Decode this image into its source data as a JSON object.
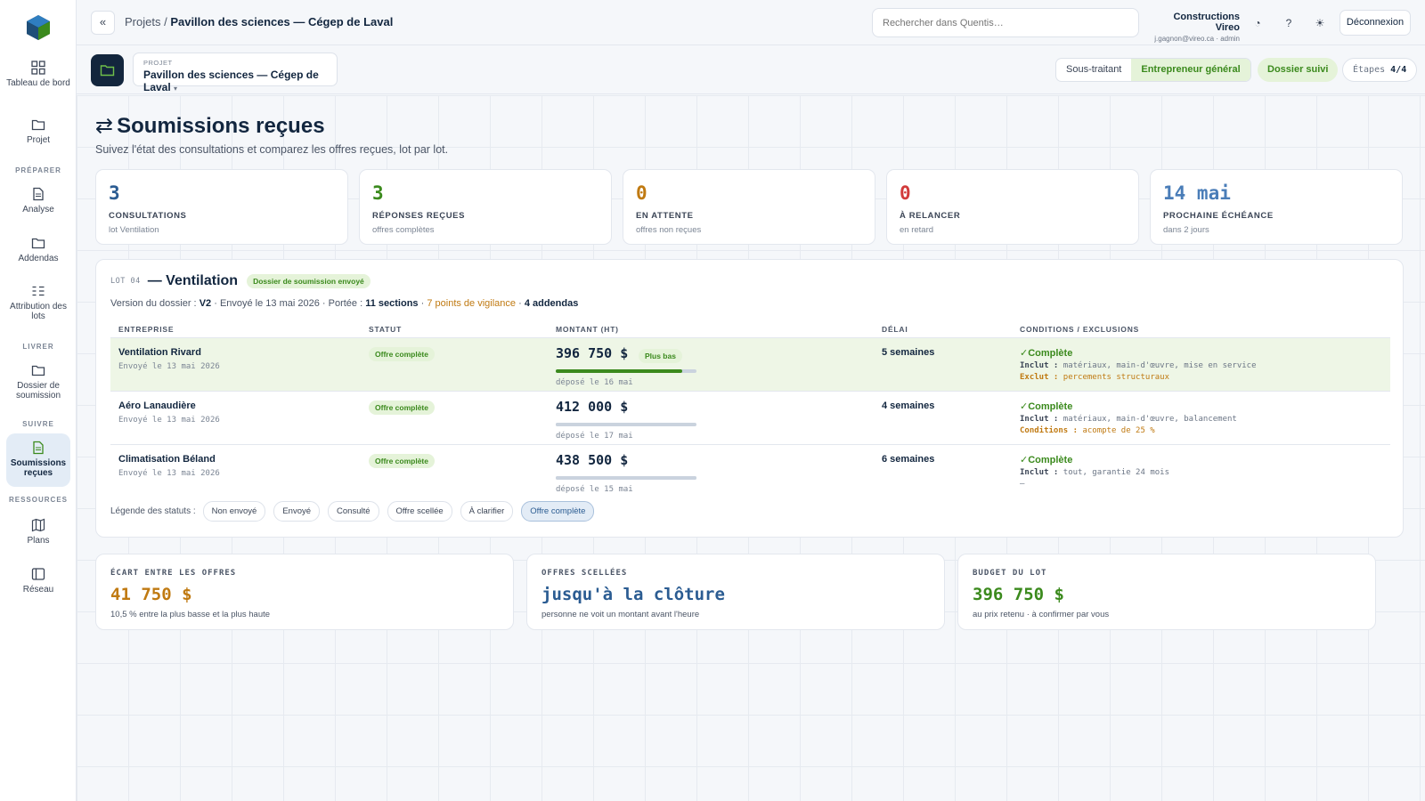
{
  "sidebar": {
    "items": [
      {
        "label": "Tableau de bord"
      },
      {
        "label": "Projet"
      },
      {
        "label": "Analyse"
      },
      {
        "label": "Addendas"
      },
      {
        "label": "Attribution des lots"
      },
      {
        "label": "Dossier de soumission"
      },
      {
        "label": "Soumissions reçues"
      },
      {
        "label": "Plans"
      },
      {
        "label": "Réseau"
      }
    ],
    "sections": {
      "preparer": "PRÉPARER",
      "livrer": "LIVRER",
      "suivre": "SUIVRE",
      "ressources": "RESSOURCES"
    }
  },
  "topbar": {
    "back_label": "«",
    "breadcrumb_root": "Projets /",
    "breadcrumb_current": "Pavillon des sciences — Cégep de Laval",
    "search_placeholder": "Rechercher dans Quentis…",
    "org_name": "Constructions Vireo",
    "org_user": "j.gagnon@vireo.ca · admin",
    "logout_label": "Déconnexion"
  },
  "project_bar": {
    "label": "PROJET",
    "value": "Pavillon des sciences — Cégep de Laval",
    "roles": [
      "Sous-traitant",
      "Entrepreneur général"
    ],
    "status_pill": "Dossier suivi",
    "steps_label": "Étapes",
    "steps_value": "4/4"
  },
  "page": {
    "title": "Soumissions reçues",
    "subtitle": "Suivez l'état des consultations et comparez les offres reçues, lot par lot."
  },
  "stats": [
    {
      "value": "3",
      "label": "CONSULTATIONS",
      "sub": "lot Ventilation",
      "color": "#2b5c92"
    },
    {
      "value": "3",
      "label": "RÉPONSES REÇUES",
      "sub": "offres complètes",
      "color": "#3b8a1d"
    },
    {
      "value": "0",
      "label": "EN ATTENTE",
      "sub": "offres non reçues",
      "color": "#c07a12"
    },
    {
      "value": "0",
      "label": "À RELANCER",
      "sub": "en retard",
      "color": "#d23b3b"
    },
    {
      "value": "14 mai",
      "label": "PROCHAINE ÉCHÉANCE",
      "sub": "dans 2 jours",
      "color": "#4a7db8"
    }
  ],
  "lot": {
    "tag": "LOT 04",
    "name": "— Ventilation",
    "badge": "Dossier de soumission envoyé",
    "meta_prefix": "Version du dossier :",
    "meta_version": "V2",
    "meta_sent": "· Envoyé le 13 mai 2026 · Portée :",
    "meta_sections": "11 sections",
    "meta_sep": "·",
    "meta_vigilance": "7 points de vigilance",
    "meta_sep2": "·",
    "meta_addendas": "4 addendas",
    "headers": [
      "ENTREPRISE",
      "STATUT",
      "MONTANT (HT)",
      "DÉLAI",
      "CONDITIONS / EXCLUSIONS"
    ],
    "rows": [
      {
        "company": "Ventilation Rivard",
        "sent": "Envoyé le 13 mai 2026",
        "status": "Offre complète",
        "amount": "396 750 $",
        "amount_badge": "Plus bas",
        "amount_value": 396750,
        "deposit": "déposé le 16 mai",
        "delay": "5 semaines",
        "cond_title": "✓Complète",
        "line1_label": "Inclut :",
        "line1_text": "matériaux, main-d'œuvre, mise en service",
        "line2_label": "Exclut :",
        "line2_text": "percements structuraux"
      },
      {
        "company": "Aéro Lanaudière",
        "sent": "Envoyé le 13 mai 2026",
        "status": "Offre complète",
        "amount": "412 000 $",
        "amount_badge": "",
        "amount_value": 412000,
        "deposit": "déposé le 17 mai",
        "delay": "4 semaines",
        "cond_title": "✓Complète",
        "line1_label": "Inclut :",
        "line1_text": "matériaux, main-d'œuvre, balancement",
        "line2_label": "Conditions :",
        "line2_text": "acompte de 25 %"
      },
      {
        "company": "Climatisation Béland",
        "sent": "Envoyé le 13 mai 2026",
        "status": "Offre complète",
        "amount": "438 500 $",
        "amount_badge": "",
        "amount_value": 438500,
        "deposit": "déposé le 15 mai",
        "delay": "6 semaines",
        "cond_title": "✓Complète",
        "line1_label": "Inclut :",
        "line1_text": "tout, garantie 24 mois",
        "line2_label": "",
        "line2_text": "—"
      }
    ],
    "legend_label": "Légende des statuts :",
    "legend": [
      "Non envoyé",
      "Envoyé",
      "Consulté",
      "Offre scellée",
      "À clarifier",
      "Offre complète"
    ]
  },
  "summary": [
    {
      "label": "ÉCART ENTRE LES OFFRES",
      "value": "41 750 $",
      "sub": "10,5 % entre la plus basse et la plus haute",
      "color": "#c07a12"
    },
    {
      "label": "OFFRES SCELLÉES",
      "value": "jusqu'à la clôture",
      "sub": "personne ne voit un montant avant l'heure",
      "color": "#2b5c92"
    },
    {
      "label": "BUDGET DU LOT",
      "value": "396 750 $",
      "sub": "au prix retenu · à confirmer par vous",
      "color": "#3b8a1d"
    }
  ]
}
